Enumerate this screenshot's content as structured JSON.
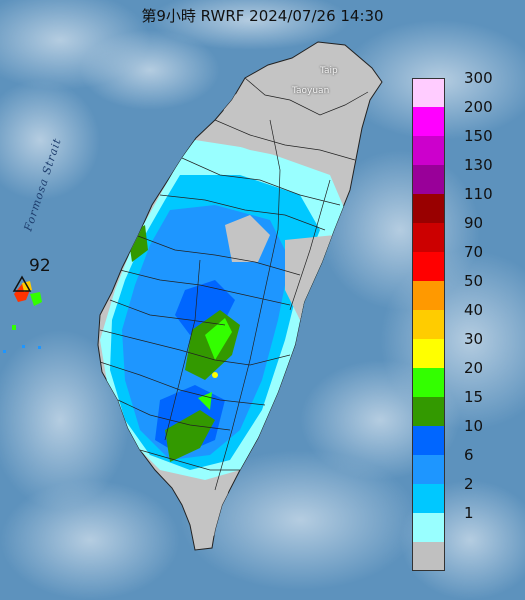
{
  "title": "第9小時  RWRF 2024/07/26 14:30",
  "strait_label": "Formosa Strait",
  "cities": {
    "taipei": "Taip",
    "taoyuan": "Taoyuan"
  },
  "peak_value": "92",
  "legend": {
    "items": [
      {
        "label": "300",
        "color": "#ffccff"
      },
      {
        "label": "200",
        "color": "#ff00ff"
      },
      {
        "label": "150",
        "color": "#cc00cc"
      },
      {
        "label": "130",
        "color": "#990099"
      },
      {
        "label": "110",
        "color": "#990000"
      },
      {
        "label": "90",
        "color": "#cc0000"
      },
      {
        "label": "70",
        "color": "#ff0000"
      },
      {
        "label": "50",
        "color": "#ff9900"
      },
      {
        "label": "40",
        "color": "#ffcc00"
      },
      {
        "label": "30",
        "color": "#ffff00"
      },
      {
        "label": "20",
        "color": "#33ff00"
      },
      {
        "label": "15",
        "color": "#339900"
      },
      {
        "label": "10",
        "color": "#0066ff"
      },
      {
        "label": "6",
        "color": "#1e96ff"
      },
      {
        "label": "2",
        "color": "#00c8ff"
      },
      {
        "label": "1",
        "color": "#99ffff"
      },
      {
        "label": "",
        "color": "#c0c0c0"
      }
    ]
  },
  "colors": {
    "sea": "#5a8fb8",
    "land_dry": "#c0c0c0",
    "rain_light": "#99ffff",
    "rain_2": "#00c8ff",
    "rain_6": "#1e96ff",
    "rain_10": "#0066ff",
    "rain_15": "#339900",
    "rain_20": "#33ff00"
  }
}
